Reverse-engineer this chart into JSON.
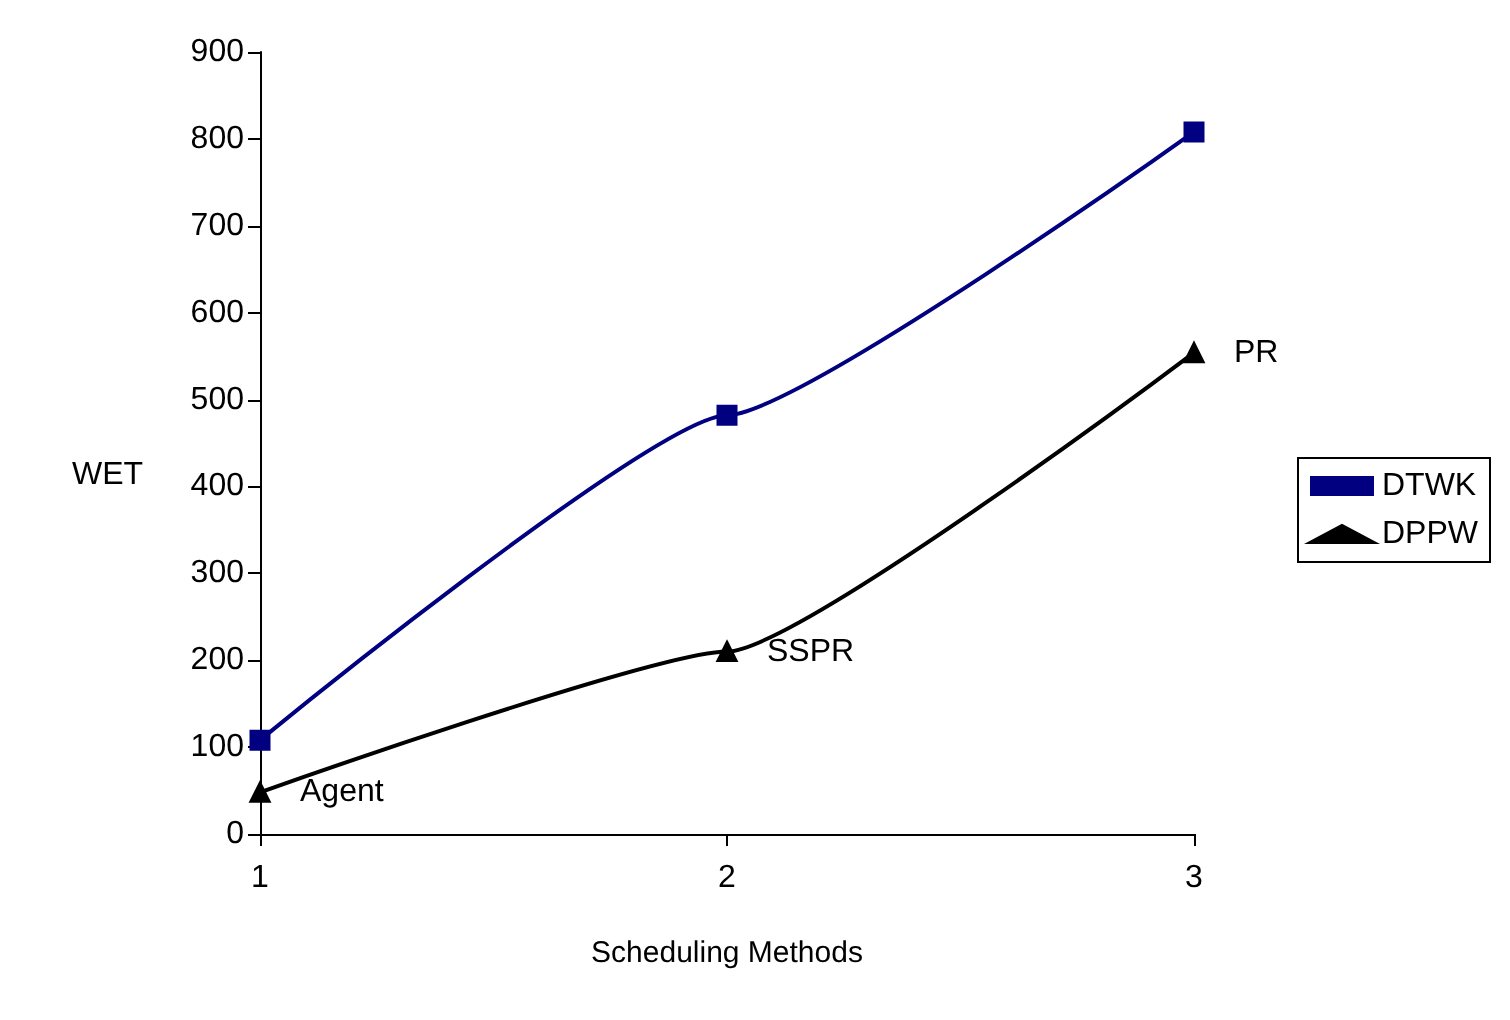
{
  "chart_data": {
    "type": "line",
    "xlabel": "Scheduling Methods",
    "ylabel": "WET",
    "categories": [
      "1",
      "2",
      "3"
    ],
    "series": [
      {
        "name": "DTWK",
        "color": "#000080",
        "marker": "square",
        "values": [
          108,
          482,
          808
        ]
      },
      {
        "name": "DPPW",
        "color": "#000000",
        "marker": "triangle",
        "values": [
          48,
          210,
          554
        ]
      }
    ],
    "ylim": [
      0,
      900
    ],
    "yticks": [
      0,
      100,
      200,
      300,
      400,
      500,
      600,
      700,
      800,
      900
    ],
    "grid": false,
    "legend": "right",
    "line_style": "solid",
    "annotations": [
      {
        "text": "Agent",
        "x": "1",
        "y": 48
      },
      {
        "text": "SSPR",
        "x": "2",
        "y": 210
      },
      {
        "text": "PR",
        "x": "3",
        "y": 554
      }
    ]
  }
}
